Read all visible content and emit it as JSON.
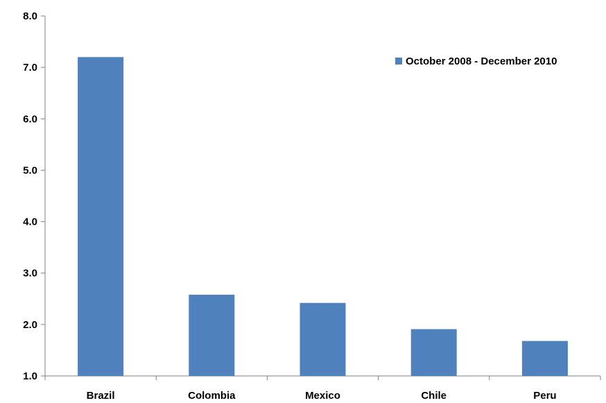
{
  "chart_data": {
    "type": "bar",
    "categories": [
      "Brazil",
      "Colombia",
      "Mexico",
      "Chile",
      "Peru"
    ],
    "series": [
      {
        "name": "October 2008 - December 2010",
        "values": [
          7.2,
          2.58,
          2.42,
          1.91,
          1.68
        ],
        "color": "#4f81bd"
      }
    ],
    "yticks": [
      "1.0",
      "2.0",
      "3.0",
      "4.0",
      "5.0",
      "6.0",
      "7.0",
      "8.0"
    ],
    "ylim": [
      1.0,
      8.0
    ],
    "grid": false,
    "legend_position": "top-right",
    "axis_color": "#808080"
  }
}
